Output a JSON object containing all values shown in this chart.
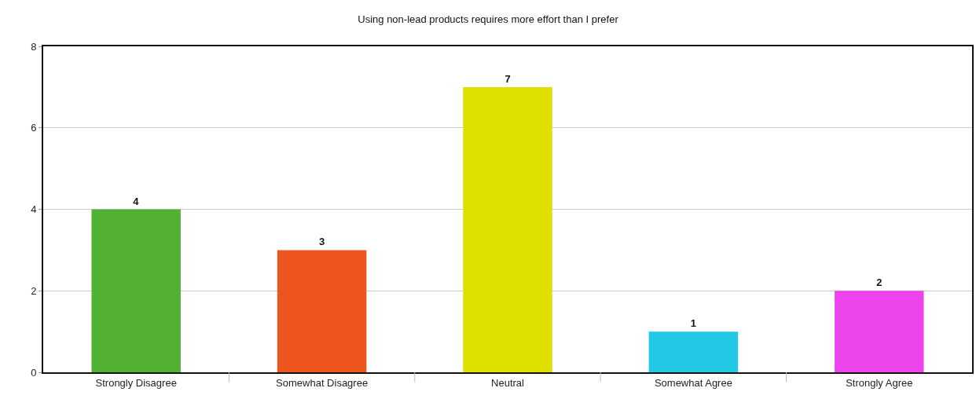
{
  "chart_data": {
    "type": "bar",
    "title": "Using non-lead products requires more effort than I prefer",
    "categories": [
      "Strongly Disagree",
      "Somewhat Disagree",
      "Neutral",
      "Somewhat Agree",
      "Strongly Agree"
    ],
    "values": [
      4,
      3,
      7,
      1,
      2
    ],
    "colors": [
      "#52b135",
      "#ec561e",
      "#dfe000",
      "#22c9e4",
      "#ee44ee"
    ],
    "ylim": [
      0,
      8
    ],
    "yticks": [
      0,
      2,
      4,
      6,
      8
    ],
    "grid": "y",
    "data_labels": true,
    "legend": false
  }
}
